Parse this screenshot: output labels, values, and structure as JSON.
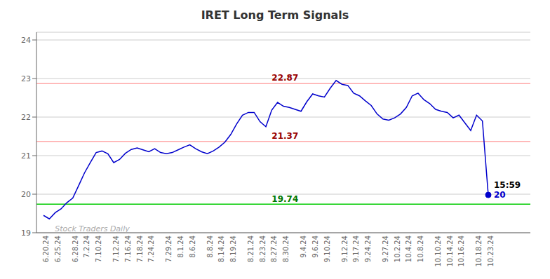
{
  "chart_data": {
    "type": "line",
    "title": "IRET Long Term Signals",
    "categories": [
      "6.20.24",
      null,
      "6.25.24",
      null,
      null,
      "6.28.24",
      null,
      "7.2.24",
      null,
      "7.10.24",
      null,
      null,
      "7.12.24",
      null,
      "7.16.24",
      null,
      "7.18.24",
      null,
      "7.24.24",
      null,
      null,
      "7.29.24",
      null,
      "8.1.24",
      null,
      "8.6.24",
      null,
      null,
      "8.8.24",
      null,
      "8.14.24",
      null,
      "8.19.24",
      null,
      null,
      "8.21.24",
      null,
      "8.23.24",
      null,
      "8.27.24",
      null,
      "8.30.24",
      null,
      null,
      "9.4.24",
      null,
      "9.6.24",
      null,
      "9.10.24",
      null,
      null,
      "9.12.24",
      null,
      "9.17.24",
      null,
      "9.24.24",
      null,
      null,
      "9.27.24",
      null,
      "10.2.24",
      null,
      "10.4.24",
      null,
      "10.8.24",
      null,
      null,
      "10.10.24",
      null,
      "10.14.24",
      null,
      "10.16.24",
      null,
      null,
      "10.18.24",
      null,
      "10.23.24"
    ],
    "values": [
      19.45,
      19.36,
      19.52,
      19.62,
      19.78,
      19.9,
      20.22,
      20.55,
      20.82,
      21.08,
      21.12,
      21.05,
      20.82,
      20.9,
      21.06,
      21.16,
      21.2,
      21.15,
      21.1,
      21.18,
      21.08,
      21.05,
      21.08,
      21.15,
      21.22,
      21.28,
      21.18,
      21.1,
      21.05,
      21.12,
      21.22,
      21.35,
      21.55,
      21.82,
      22.05,
      22.12,
      22.12,
      21.88,
      21.75,
      22.18,
      22.38,
      22.28,
      22.25,
      22.2,
      22.15,
      22.4,
      22.6,
      22.55,
      22.52,
      22.75,
      22.95,
      22.85,
      22.82,
      22.62,
      22.55,
      22.42,
      22.3,
      22.08,
      21.95,
      21.92,
      21.98,
      22.08,
      22.25,
      22.55,
      22.62,
      22.45,
      22.35,
      22.2,
      22.15,
      22.12,
      21.98,
      22.05,
      21.85,
      21.65,
      22.05,
      21.9,
      19.98
    ],
    "color": "#0000cc",
    "ylim": [
      19.0,
      24.2
    ],
    "yticks": [
      19,
      20,
      21,
      22,
      23,
      24
    ],
    "grid": true,
    "annotations": [
      {
        "text": "22.87",
        "x": "8.27.24",
        "y": 22.87,
        "color": "#990000",
        "line_color": "#ffaaaa"
      },
      {
        "text": "21.37",
        "x": "8.27.24",
        "y": 21.37,
        "color": "#990000",
        "line_color": "#ffaaaa"
      },
      {
        "text": "19.74",
        "x": "8.27.24",
        "y": 19.74,
        "color": "#007700",
        "line_color": "#00cc00"
      },
      {
        "text": "15:59",
        "x": "10.23.24",
        "y": 19.98,
        "color": "#000000"
      },
      {
        "text": "20",
        "x": "10.23.24",
        "y": 19.98,
        "color": "#0000cc"
      },
      {
        "text": "Stock Traders Daily",
        "y": 19.1,
        "color": "#aaaaaa"
      }
    ]
  }
}
